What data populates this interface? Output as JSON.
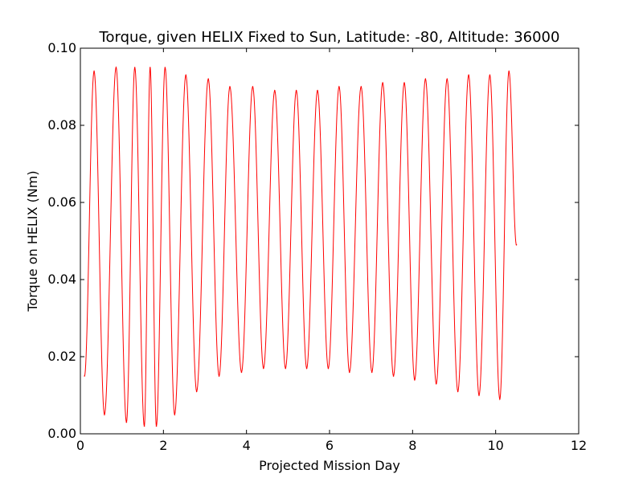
{
  "chart_data": {
    "type": "line",
    "title": "Torque, given HELIX Fixed to Sun, Latitude: -80, Altitude: 36000",
    "xlabel": "Projected Mission Day",
    "ylabel": "Torque on HELIX (Nm)",
    "xlim": [
      0,
      12
    ],
    "ylim": [
      0,
      0.1
    ],
    "x_ticks": [
      0,
      2,
      4,
      6,
      8,
      10,
      12
    ],
    "x_tick_labels": [
      "0",
      "2",
      "4",
      "6",
      "8",
      "10",
      "12"
    ],
    "y_ticks": [
      0,
      0.02,
      0.04,
      0.06,
      0.08,
      0.1
    ],
    "y_tick_labels": [
      "0.00",
      "0.02",
      "0.04",
      "0.06",
      "0.08",
      "0.10"
    ],
    "grid": false,
    "legend": "none",
    "series": [
      {
        "color": "#ff0000",
        "x": [
          0.1,
          0.33,
          0.58,
          0.86,
          1.11,
          1.31,
          1.54,
          1.68,
          1.83,
          2.04,
          2.27,
          2.54,
          2.8,
          3.08,
          3.34,
          3.6,
          3.88,
          4.15,
          4.41,
          4.68,
          4.94,
          5.2,
          5.45,
          5.71,
          5.97,
          6.23,
          6.48,
          6.76,
          7.02,
          7.28,
          7.54,
          7.8,
          8.05,
          8.31,
          8.57,
          8.83,
          9.09,
          9.35,
          9.6,
          9.86,
          10.1,
          10.32,
          10.5
        ],
        "y": [
          0.015,
          0.094,
          0.005,
          0.095,
          0.003,
          0.095,
          0.002,
          0.095,
          0.002,
          0.095,
          0.005,
          0.093,
          0.011,
          0.092,
          0.015,
          0.09,
          0.016,
          0.09,
          0.017,
          0.089,
          0.017,
          0.089,
          0.017,
          0.089,
          0.017,
          0.09,
          0.016,
          0.09,
          0.016,
          0.091,
          0.015,
          0.091,
          0.014,
          0.092,
          0.013,
          0.092,
          0.011,
          0.093,
          0.01,
          0.093,
          0.009,
          0.094,
          0.049
        ]
      }
    ]
  }
}
